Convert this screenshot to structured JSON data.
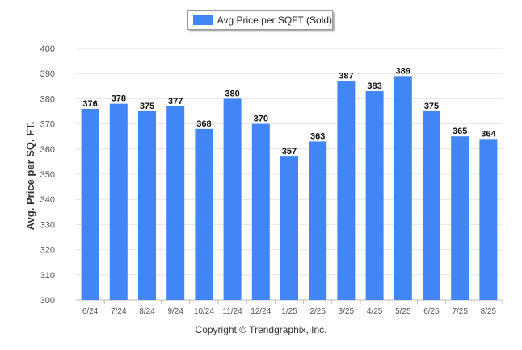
{
  "legend": {
    "label": "Avg Price per SQFT (Sold)"
  },
  "footer": {
    "copyright": "Copyright © Trendgraphix, Inc."
  },
  "colors": {
    "bar": "#4285f4",
    "grid": "#e4e4e4",
    "axis_text": "#555555",
    "label_text": "#111111"
  },
  "chart_data": {
    "type": "bar",
    "categories": [
      "6/24",
      "7/24",
      "8/24",
      "9/24",
      "10/24",
      "11/24",
      "12/24",
      "1/25",
      "2/25",
      "3/25",
      "4/25",
      "5/25",
      "6/25",
      "7/25",
      "8/25"
    ],
    "series": [
      {
        "name": "Avg Price per SQFT (Sold)",
        "values": [
          376,
          378,
          375,
          377,
          368,
          380,
          370,
          357,
          363,
          387,
          383,
          389,
          375,
          365,
          364
        ]
      }
    ],
    "ylabel": "Avg. Price per SQ. FT.",
    "xlabel": "",
    "ylim": [
      300,
      400
    ],
    "yticks": [
      300,
      310,
      320,
      330,
      340,
      350,
      360,
      370,
      380,
      390,
      400
    ],
    "grid": true,
    "legend_position": "top-center",
    "data_labels": true
  }
}
